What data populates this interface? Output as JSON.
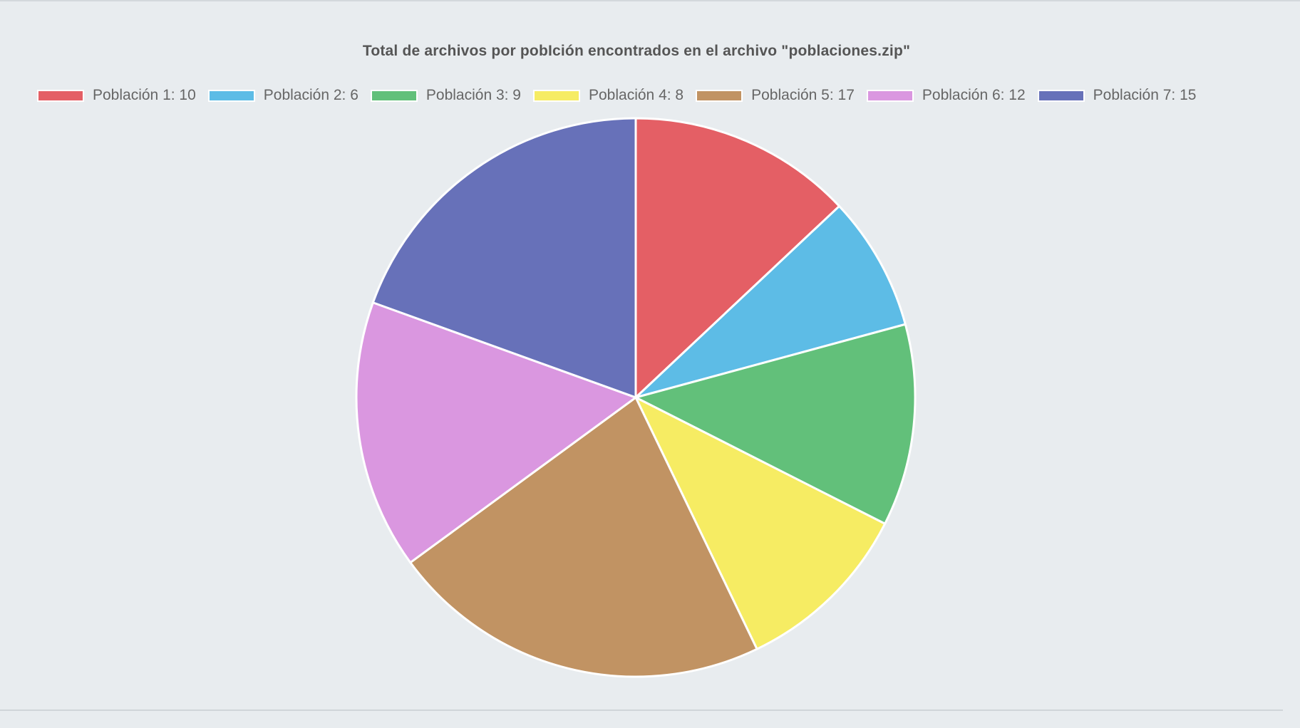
{
  "chart_data": {
    "type": "pie",
    "title": "Total de archivos por pobIción encontrados en el archivo \"poblaciones.zip\"",
    "legend_position": "top",
    "categories": [
      "Población 1",
      "Población 2",
      "Población 3",
      "Población 4",
      "Población 5",
      "Población 6",
      "Población 7"
    ],
    "values": [
      10,
      6,
      9,
      8,
      17,
      12,
      15
    ],
    "legend_labels": [
      "Población 1: 10",
      "Población 2: 6",
      "Población 3: 9",
      "Población 4: 8",
      "Población 5: 17",
      "Población 6: 12",
      "Población 7: 15"
    ],
    "colors": [
      "#e45f65",
      "#5dbce6",
      "#62c07a",
      "#f6ec63",
      "#c19363",
      "#da97e0",
      "#6771b9"
    ]
  }
}
